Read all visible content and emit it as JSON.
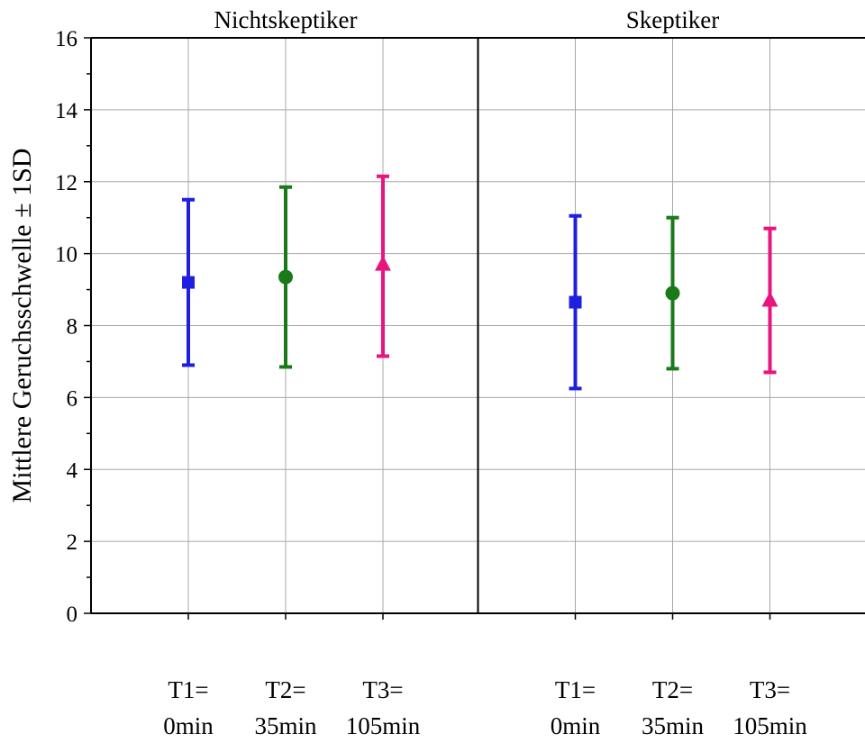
{
  "chart_data": {
    "type": "scatter",
    "ylabel": "Mittlere Geruchsschwelle ± 1SD",
    "ylim": [
      0,
      16
    ],
    "yticks": [
      0,
      2,
      4,
      6,
      8,
      10,
      12,
      14,
      16
    ],
    "grid": true,
    "error_bars": "±1 SD",
    "categories": [
      {
        "line1": "T1=",
        "line2": "0min"
      },
      {
        "line1": "T2=",
        "line2": "35min"
      },
      {
        "line1": "T3=",
        "line2": "105min"
      }
    ],
    "series_styles": [
      {
        "marker": "square",
        "color": "#1f1fe0"
      },
      {
        "marker": "circle",
        "color": "#1a7a1a"
      },
      {
        "marker": "triangle",
        "color": "#e8157e"
      }
    ],
    "panels": [
      {
        "title": "Nichtskeptiker",
        "points": [
          {
            "mean": 9.2,
            "low": 6.9,
            "high": 11.5
          },
          {
            "mean": 9.35,
            "low": 6.85,
            "high": 11.85
          },
          {
            "mean": 9.7,
            "low": 7.15,
            "high": 12.15
          }
        ]
      },
      {
        "title": "Skeptiker",
        "points": [
          {
            "mean": 8.65,
            "low": 6.25,
            "high": 11.05
          },
          {
            "mean": 8.9,
            "low": 6.8,
            "high": 11.0
          },
          {
            "mean": 8.7,
            "low": 6.7,
            "high": 10.7
          }
        ]
      }
    ]
  }
}
